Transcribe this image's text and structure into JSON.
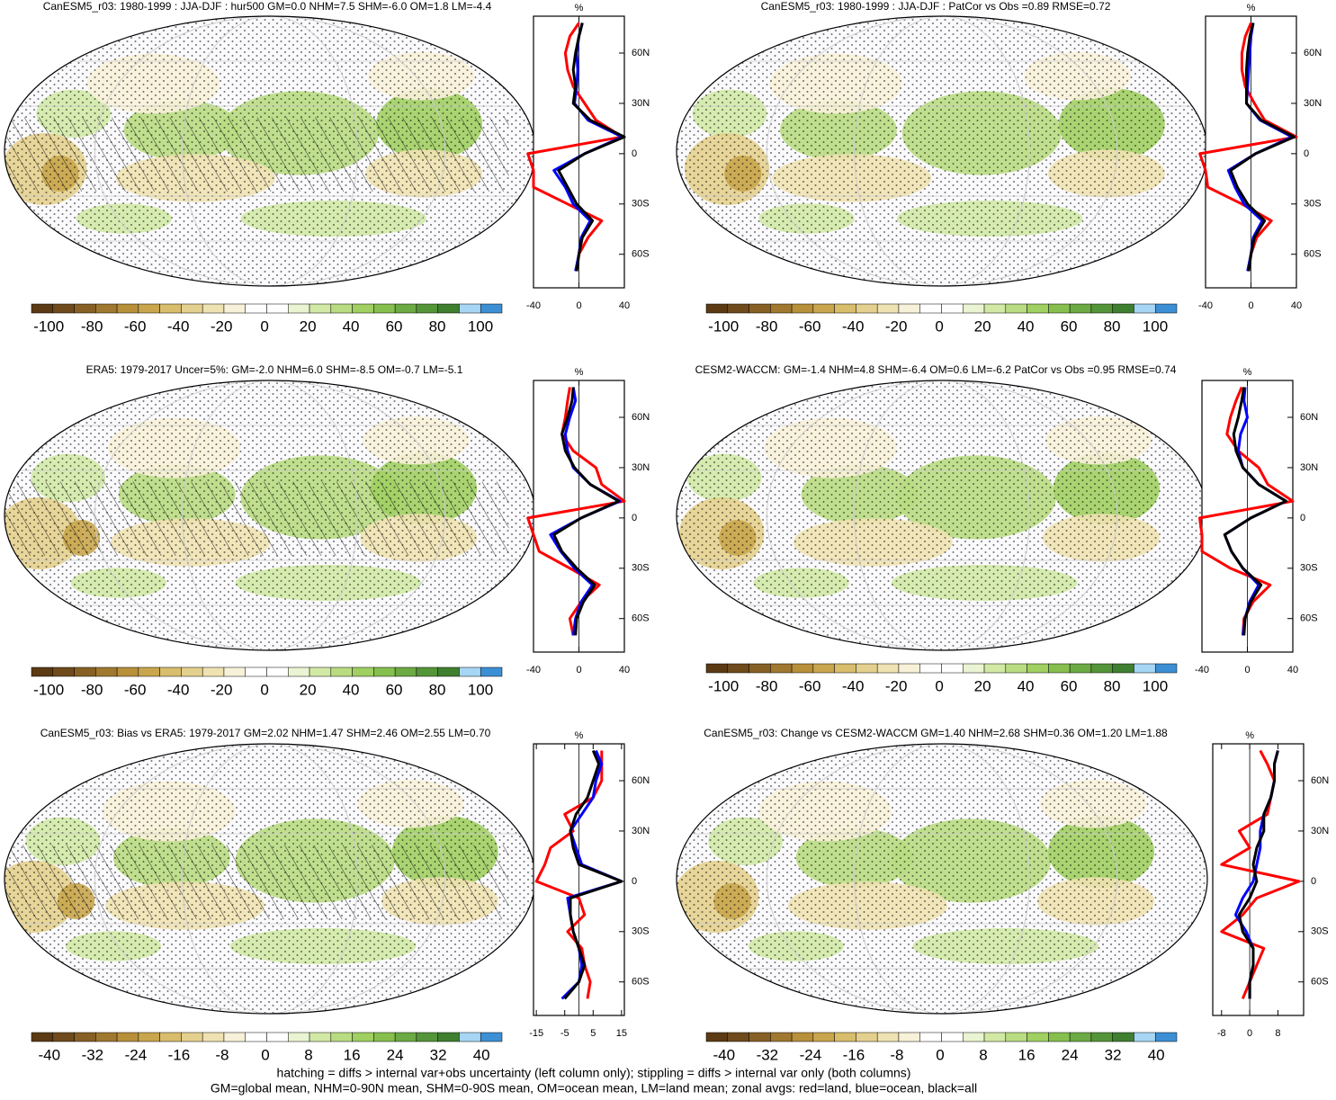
{
  "chart_data": [
    {
      "type": "line",
      "title": "CanESM5_r03: 1980-1999 : JJA-DJF : hur500 GM=0.0 NHM=7.5 SHM=-6.0 OM=1.8 LM=-4.4",
      "hatching": true,
      "colorbar": {
        "lim": [
          -108,
          110
        ],
        "ticks": [
          -100,
          -80,
          -60,
          -40,
          -20,
          0,
          20,
          40,
          60,
          80,
          100
        ]
      },
      "ylabel": "%",
      "ylim": [
        -40,
        40
      ],
      "yticks": [
        -40,
        0,
        40
      ],
      "xlim": [
        -80,
        82
      ],
      "xticks": [
        {
          "value": 60,
          "label": "60N"
        },
        {
          "value": 30,
          "label": "30N"
        },
        0,
        {
          "value": -30,
          "label": "30S"
        },
        {
          "value": -60,
          "label": "60S"
        }
      ],
      "x": [
        -70,
        -60,
        -50,
        -40,
        -30,
        -20,
        -10,
        0,
        10,
        20,
        30,
        40,
        50,
        60,
        70,
        78
      ],
      "series": [
        {
          "name": "land",
          "color": "#ff0000",
          "values": [
            -2,
            0,
            8,
            20,
            -10,
            -40,
            -40,
            -45,
            38,
            15,
            5,
            -5,
            -10,
            -12,
            -8,
            0
          ]
        },
        {
          "name": "ocean",
          "color": "#0000ff",
          "values": [
            -3,
            0,
            2,
            10,
            -5,
            -12,
            -22,
            5,
            38,
            8,
            -4,
            -2,
            -1,
            -2,
            0,
            3
          ]
        },
        {
          "name": "all",
          "color": "#000000",
          "values": [
            -2,
            0,
            3,
            12,
            -2,
            -10,
            -18,
            5,
            40,
            10,
            -5,
            -3,
            -5,
            -3,
            0,
            3
          ]
        }
      ]
    },
    {
      "type": "line",
      "title": "CanESM5_r03: 1980-1999 : JJA-DJF : PatCor vs Obs =0.89 RMSE=0.72",
      "hatching": false,
      "colorbar": {
        "lim": [
          -108,
          110
        ],
        "ticks": [
          -100,
          -80,
          -60,
          -40,
          -20,
          0,
          20,
          40,
          60,
          80,
          100
        ]
      },
      "ylabel": "%",
      "ylim": [
        -40,
        40
      ],
      "yticks": [
        -40,
        0,
        40
      ],
      "xlim": [
        -80,
        82
      ],
      "xticks": [
        {
          "value": 60,
          "label": "60N"
        },
        {
          "value": 30,
          "label": "30N"
        },
        0,
        {
          "value": -30,
          "label": "30S"
        },
        {
          "value": -60,
          "label": "60S"
        }
      ],
      "x": [
        -70,
        -60,
        -50,
        -40,
        -30,
        -20,
        -10,
        0,
        10,
        20,
        30,
        40,
        50,
        60,
        70,
        78
      ],
      "series": [
        {
          "name": "land",
          "color": "#ff0000",
          "values": [
            -2,
            0,
            5,
            18,
            -8,
            -38,
            -40,
            -45,
            40,
            12,
            3,
            -5,
            -8,
            -8,
            -5,
            0
          ]
        },
        {
          "name": "ocean",
          "color": "#0000ff",
          "values": [
            -3,
            0,
            2,
            10,
            -6,
            -14,
            -20,
            4,
            36,
            8,
            -4,
            -3,
            -2,
            -1,
            0,
            2
          ]
        },
        {
          "name": "all",
          "color": "#000000",
          "values": [
            -2,
            0,
            3,
            12,
            -3,
            -12,
            -18,
            4,
            38,
            9,
            -4,
            -4,
            -4,
            -3,
            -1,
            2
          ]
        }
      ]
    },
    {
      "type": "line",
      "title": "ERA5: 1979-2017 Uncer=5%: GM=-2.0 NHM=6.0 SHM=-8.5 OM=-0.7 LM=-5.1",
      "hatching": true,
      "colorbar": {
        "lim": [
          -108,
          110
        ],
        "ticks": [
          -100,
          -80,
          -60,
          -40,
          -20,
          0,
          20,
          40,
          60,
          80,
          100
        ]
      },
      "ylabel": "%",
      "ylim": [
        -40,
        40
      ],
      "yticks": [
        -40,
        0,
        40
      ],
      "xlim": [
        -80,
        82
      ],
      "xticks": [
        {
          "value": 60,
          "label": "60N"
        },
        {
          "value": 30,
          "label": "30N"
        },
        0,
        {
          "value": -30,
          "label": "30S"
        },
        {
          "value": -60,
          "label": "60S"
        }
      ],
      "x": [
        -70,
        -60,
        -50,
        -40,
        -30,
        -20,
        -10,
        0,
        10,
        20,
        30,
        40,
        50,
        60,
        70,
        78
      ],
      "series": [
        {
          "name": "land",
          "color": "#ff0000",
          "values": [
            -5,
            -8,
            2,
            18,
            -8,
            -35,
            -40,
            -45,
            40,
            20,
            15,
            -5,
            -15,
            -12,
            -10,
            -8
          ]
        },
        {
          "name": "ocean",
          "color": "#0000ff",
          "values": [
            -5,
            -3,
            2,
            12,
            -4,
            -16,
            -25,
            2,
            36,
            10,
            -5,
            -10,
            -12,
            -8,
            -3,
            -5
          ]
        },
        {
          "name": "all",
          "color": "#000000",
          "values": [
            -3,
            -2,
            4,
            14,
            -2,
            -15,
            -22,
            2,
            35,
            10,
            -4,
            -12,
            -15,
            -10,
            -6,
            -5
          ]
        }
      ]
    },
    {
      "type": "line",
      "title": "CESM2-WACCM: GM=-1.4 NHM=4.8 SHM=-6.4 OM=0.6 LM=-6.2 PatCor vs Obs =0.95 RMSE=0.74",
      "hatching": false,
      "colorbar": {
        "lim": [
          -108,
          110
        ],
        "ticks": [
          -100,
          -80,
          -60,
          -40,
          -20,
          0,
          20,
          40,
          60,
          80,
          100
        ]
      },
      "ylabel": "%",
      "ylim": [
        -40,
        40
      ],
      "yticks": [
        -40,
        0,
        40
      ],
      "xlim": [
        -80,
        82
      ],
      "xticks": [
        {
          "value": 60,
          "label": "60N"
        },
        {
          "value": 30,
          "label": "30N"
        },
        0,
        {
          "value": -30,
          "label": "30S"
        },
        {
          "value": -60,
          "label": "60S"
        }
      ],
      "x": [
        -70,
        -60,
        -50,
        -40,
        -30,
        -20,
        -10,
        0,
        10,
        20,
        30,
        40,
        50,
        60,
        70,
        78
      ],
      "series": [
        {
          "name": "land",
          "color": "#ff0000",
          "values": [
            -4,
            -3,
            5,
            20,
            -15,
            -40,
            -40,
            -42,
            40,
            18,
            10,
            -8,
            -18,
            -15,
            -10,
            -5
          ]
        },
        {
          "name": "ocean",
          "color": "#0000ff",
          "values": [
            -4,
            -2,
            2,
            10,
            -4,
            -14,
            -20,
            3,
            34,
            10,
            -4,
            -8,
            -6,
            0,
            -3,
            -2
          ]
        },
        {
          "name": "all",
          "color": "#000000",
          "values": [
            -3,
            -2,
            3,
            12,
            -4,
            -14,
            -20,
            3,
            34,
            10,
            -4,
            -10,
            -12,
            -8,
            -5,
            -3
          ]
        }
      ]
    },
    {
      "type": "line",
      "title": "CanESM5_r03: Bias vs ERA5: 1979-2017 GM=2.02 NHM=1.47 SHM=2.46 OM=2.55 LM=0.70",
      "hatching": true,
      "colorbar": {
        "lim": [
          -43.3,
          43.8
        ],
        "ticks": [
          -40,
          -32,
          -24,
          -16,
          -8,
          0,
          8,
          16,
          24,
          32,
          40
        ]
      },
      "ylabel": "%",
      "ylim": [
        -16,
        16
      ],
      "yticks": [
        -15,
        -5,
        5,
        15
      ],
      "xlim": [
        -80,
        82
      ],
      "xticks": [
        {
          "value": 60,
          "label": "60N"
        },
        {
          "value": 30,
          "label": "30N"
        },
        0,
        {
          "value": -30,
          "label": "30S"
        },
        {
          "value": -60,
          "label": "60S"
        }
      ],
      "x": [
        -70,
        -60,
        -50,
        -40,
        -30,
        -20,
        -10,
        0,
        10,
        20,
        30,
        40,
        50,
        60,
        70,
        78
      ],
      "series": [
        {
          "name": "land",
          "color": "#ff0000",
          "values": [
            3,
            4,
            2,
            1,
            -4,
            2,
            0,
            -15,
            -12,
            -10,
            -2,
            -5,
            5,
            8,
            8,
            8
          ]
        },
        {
          "name": "ocean",
          "color": "#0000ff",
          "values": [
            -6,
            0,
            1,
            0,
            -2,
            -3,
            -4,
            15,
            1,
            -1,
            -3,
            1,
            5,
            6,
            8,
            6
          ]
        },
        {
          "name": "all",
          "color": "#000000",
          "values": [
            -5,
            0,
            2,
            0,
            -2,
            -3,
            -3,
            15,
            0,
            -2,
            -3,
            -1,
            3,
            5,
            7,
            5
          ]
        }
      ]
    },
    {
      "type": "line",
      "title": "CanESM5_r03: Change vs CESM2-WACCM GM=1.40 NHM=2.68 SHM=0.36 OM=1.20 LM=1.88",
      "hatching": false,
      "colorbar": {
        "lim": [
          -43.3,
          43.8
        ],
        "ticks": [
          -40,
          -32,
          -24,
          -16,
          -8,
          0,
          8,
          16,
          24,
          32,
          40
        ]
      },
      "ylabel": "%",
      "ylim": [
        -10.5,
        15.3
      ],
      "yticks": [
        -8,
        0,
        8
      ],
      "xlim": [
        -80,
        82
      ],
      "xticks": [
        {
          "value": 60,
          "label": "60N"
        },
        {
          "value": 30,
          "label": "30N"
        },
        0,
        {
          "value": -30,
          "label": "30S"
        },
        {
          "value": -60,
          "label": "60S"
        }
      ],
      "x": [
        -70,
        -60,
        -50,
        -40,
        -30,
        -20,
        -10,
        0,
        10,
        20,
        30,
        40,
        50,
        60,
        70,
        78
      ],
      "series": [
        {
          "name": "land",
          "color": "#ff0000",
          "values": [
            -2,
            0,
            2,
            4,
            -8,
            -2,
            2,
            14,
            -8,
            0,
            -3,
            5,
            6,
            7,
            5,
            3
          ]
        },
        {
          "name": "ocean",
          "color": "#0000ff",
          "values": [
            0,
            0,
            1,
            1,
            -1,
            -4,
            -2,
            1,
            2,
            3,
            3,
            4,
            6,
            7,
            7,
            8
          ]
        },
        {
          "name": "all",
          "color": "#000000",
          "values": [
            0,
            0,
            1,
            1,
            -2,
            -3,
            0,
            2,
            1,
            2,
            4,
            4,
            6,
            7,
            7,
            8
          ]
        }
      ]
    }
  ],
  "colorbar_colors": [
    "#5b3a14",
    "#6f4a1c",
    "#876026",
    "#a07830",
    "#b8903a",
    "#c9a64e",
    "#d8bd6c",
    "#e4d08e",
    "#efe2b2",
    "#f8f1d9",
    "#ffffff",
    "#ffffff",
    "#eaf4d2",
    "#d2e9a6",
    "#b9dc82",
    "#a0cf62",
    "#86bf4e",
    "#6caa44",
    "#559539",
    "#3f7f30",
    "#a6d6f4",
    "#3c8fd4"
  ],
  "footer": [
    "hatching = diffs > internal var+obs uncertainty (left column only); stippling = diffs > internal var only (both columns)",
    "GM=global mean, NHM=0-90N mean, SHM=0-90S mean, OM=ocean mean, LM=land mean; zonal avgs: red=land, blue=ocean, black=all"
  ]
}
